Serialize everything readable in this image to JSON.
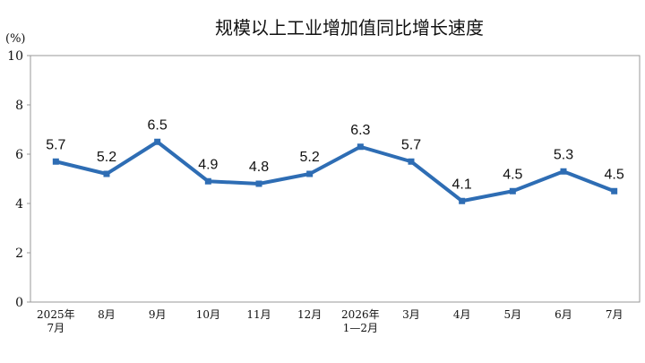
{
  "chart_data": {
    "type": "line",
    "title": "规模以上工业增加值同比增长速度",
    "unit_label": "(%)",
    "xlabel": "",
    "ylabel": "",
    "categories": [
      [
        "2025年",
        "7月"
      ],
      [
        "8月"
      ],
      [
        "9月"
      ],
      [
        "10月"
      ],
      [
        "11月"
      ],
      [
        "12月"
      ],
      [
        "2026年",
        "1—2月"
      ],
      [
        "3月"
      ],
      [
        "4月"
      ],
      [
        "5月"
      ],
      [
        "6月"
      ],
      [
        "7月"
      ]
    ],
    "series": [
      {
        "values": [
          5.7,
          5.2,
          6.5,
          4.9,
          4.8,
          5.2,
          6.3,
          5.7,
          4.1,
          4.5,
          5.3,
          4.5
        ],
        "data_labels": [
          "5.7",
          "5.2",
          "6.5",
          "4.9",
          "4.8",
          "5.2",
          "6.3",
          "5.7",
          "4.1",
          "4.5",
          "5.3",
          "4.5"
        ]
      }
    ],
    "ylim": [
      0,
      10
    ],
    "yticks": [
      "0",
      "2",
      "4",
      "6",
      "8",
      "10"
    ],
    "grid": false,
    "legend": "none",
    "colors": {
      "line": "#2E6DB4",
      "axis": "#999999",
      "text": "#111111"
    }
  }
}
